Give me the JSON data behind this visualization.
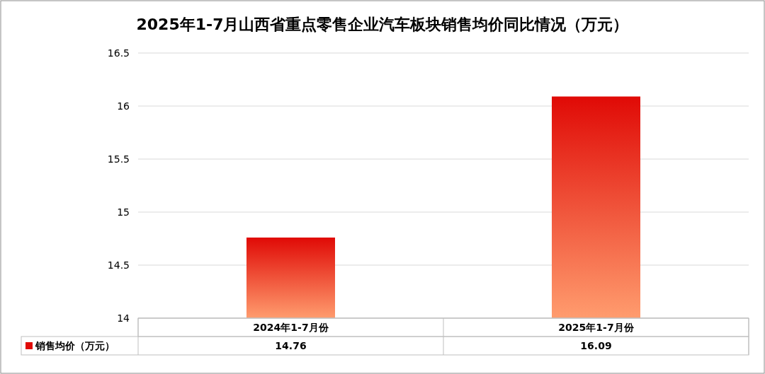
{
  "chart_data": {
    "type": "bar",
    "title": "2025年1-7月山西省重点零售企业汽车板块销售均价同比情况（万元）",
    "categories": [
      "2024年1-7月份",
      "2025年1-7月份"
    ],
    "series": [
      {
        "name": "销售均价（万元）",
        "color": "#e00a06",
        "values": [
          14.76,
          16.09
        ]
      }
    ],
    "ylim": [
      14,
      16.5
    ],
    "yticks": [
      14,
      14.5,
      15,
      15.5,
      16,
      16.5
    ],
    "grid": "y",
    "data_labels": true,
    "legend": "bottom"
  }
}
